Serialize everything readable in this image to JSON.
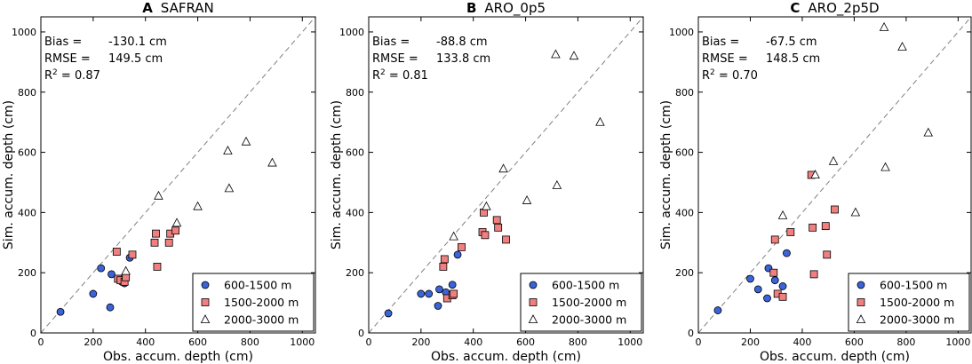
{
  "chart_data": [
    {
      "type": "scatter",
      "panel_letter": "A",
      "title": "SAFRAN",
      "xlabel": "Obs. accum. depth (cm)",
      "ylabel": "Sim. accum. depth (cm)",
      "xlim": [
        0,
        1050
      ],
      "ylim": [
        0,
        1050
      ],
      "xticks": [
        0,
        200,
        400,
        600,
        800,
        1000
      ],
      "yticks": [
        0,
        200,
        400,
        600,
        800,
        1000
      ],
      "reference_line": "1:1",
      "stats": {
        "bias_label": "Bias =",
        "bias_value": "-130.1 cm",
        "rmse_label": "RMSE =",
        "rmse_value": "149.5 cm",
        "r2_base": "R",
        "r2_sup": "2",
        "r2_value": " = 0.87"
      },
      "legend_position": "bottom-right",
      "series": [
        {
          "name": "600-1500 m",
          "marker": "circle",
          "color": "#3a64d8",
          "x": [
            75,
            200,
            230,
            265,
            270,
            295,
            310,
            320,
            340
          ],
          "y": [
            70,
            130,
            215,
            85,
            195,
            180,
            170,
            165,
            250
          ]
        },
        {
          "name": "1500-2000 m",
          "marker": "square",
          "color": "#f08080",
          "x": [
            290,
            295,
            305,
            320,
            325,
            350,
            435,
            440,
            445,
            490,
            495,
            515
          ],
          "y": [
            270,
            180,
            175,
            170,
            185,
            260,
            300,
            330,
            220,
            300,
            330,
            340
          ]
        },
        {
          "name": "2000-3000 m",
          "marker": "triangle",
          "color": "#ffffff",
          "x": [
            325,
            450,
            520,
            600,
            715,
            720,
            785,
            885
          ],
          "y": [
            205,
            455,
            365,
            420,
            605,
            480,
            635,
            565
          ]
        }
      ]
    },
    {
      "type": "scatter",
      "panel_letter": "B",
      "title": "ARO_0p5",
      "xlabel": "Obs. accum. depth (cm)",
      "ylabel": "Sim. accum. depth (cm)",
      "xlim": [
        0,
        1050
      ],
      "ylim": [
        0,
        1050
      ],
      "xticks": [
        0,
        200,
        400,
        600,
        800,
        1000
      ],
      "yticks": [
        0,
        200,
        400,
        600,
        800,
        1000
      ],
      "reference_line": "1:1",
      "stats": {
        "bias_label": "Bias =",
        "bias_value": "-88.8 cm",
        "rmse_label": "RMSE =",
        "rmse_value": "133.8 cm",
        "r2_base": "R",
        "r2_sup": "2",
        "r2_value": " = 0.81"
      },
      "legend_position": "bottom-right",
      "series": [
        {
          "name": "600-1500 m",
          "marker": "circle",
          "color": "#3a64d8",
          "x": [
            75,
            200,
            230,
            265,
            270,
            295,
            320,
            340
          ],
          "y": [
            65,
            130,
            130,
            90,
            145,
            135,
            160,
            260
          ]
        },
        {
          "name": "1500-2000 m",
          "marker": "square",
          "color": "#f08080",
          "x": [
            285,
            290,
            300,
            320,
            325,
            355,
            435,
            440,
            445,
            490,
            495,
            525
          ],
          "y": [
            220,
            245,
            115,
            125,
            130,
            285,
            335,
            400,
            325,
            375,
            350,
            310
          ]
        },
        {
          "name": "2000-3000 m",
          "marker": "triangle",
          "color": "#ffffff",
          "x": [
            325,
            450,
            515,
            605,
            715,
            720,
            785,
            885
          ],
          "y": [
            320,
            420,
            545,
            440,
            925,
            490,
            920,
            700
          ]
        }
      ]
    },
    {
      "type": "scatter",
      "panel_letter": "C",
      "title": "ARO_2p5D",
      "xlabel": "Obs. accum. depth (cm)",
      "ylabel": "Sim. accum. depth (cm)",
      "xlim": [
        0,
        1050
      ],
      "ylim": [
        0,
        1050
      ],
      "xticks": [
        0,
        200,
        400,
        600,
        800,
        1000
      ],
      "yticks": [
        0,
        200,
        400,
        600,
        800,
        1000
      ],
      "reference_line": "1:1",
      "stats": {
        "bias_label": "Bias =",
        "bias_value": "-67.5 cm",
        "rmse_label": "RMSE =",
        "rmse_value": "148.5 cm",
        "r2_base": "R",
        "r2_sup": "2",
        "r2_value": " = 0.70"
      },
      "legend_position": "bottom-right",
      "series": [
        {
          "name": "600-1500 m",
          "marker": "circle",
          "color": "#3a64d8",
          "x": [
            75,
            200,
            230,
            265,
            270,
            295,
            325,
            340
          ],
          "y": [
            75,
            180,
            145,
            115,
            215,
            175,
            155,
            265
          ]
        },
        {
          "name": "1500-2000 m",
          "marker": "square",
          "color": "#f08080",
          "x": [
            290,
            295,
            305,
            325,
            355,
            435,
            440,
            445,
            490,
            495,
            525
          ],
          "y": [
            200,
            310,
            130,
            120,
            335,
            525,
            350,
            195,
            355,
            260,
            410
          ]
        },
        {
          "name": "2000-3000 m",
          "marker": "triangle",
          "color": "#ffffff",
          "x": [
            325,
            450,
            520,
            605,
            715,
            720,
            785,
            885
          ],
          "y": [
            390,
            525,
            570,
            400,
            1015,
            550,
            950,
            665
          ]
        }
      ]
    }
  ]
}
